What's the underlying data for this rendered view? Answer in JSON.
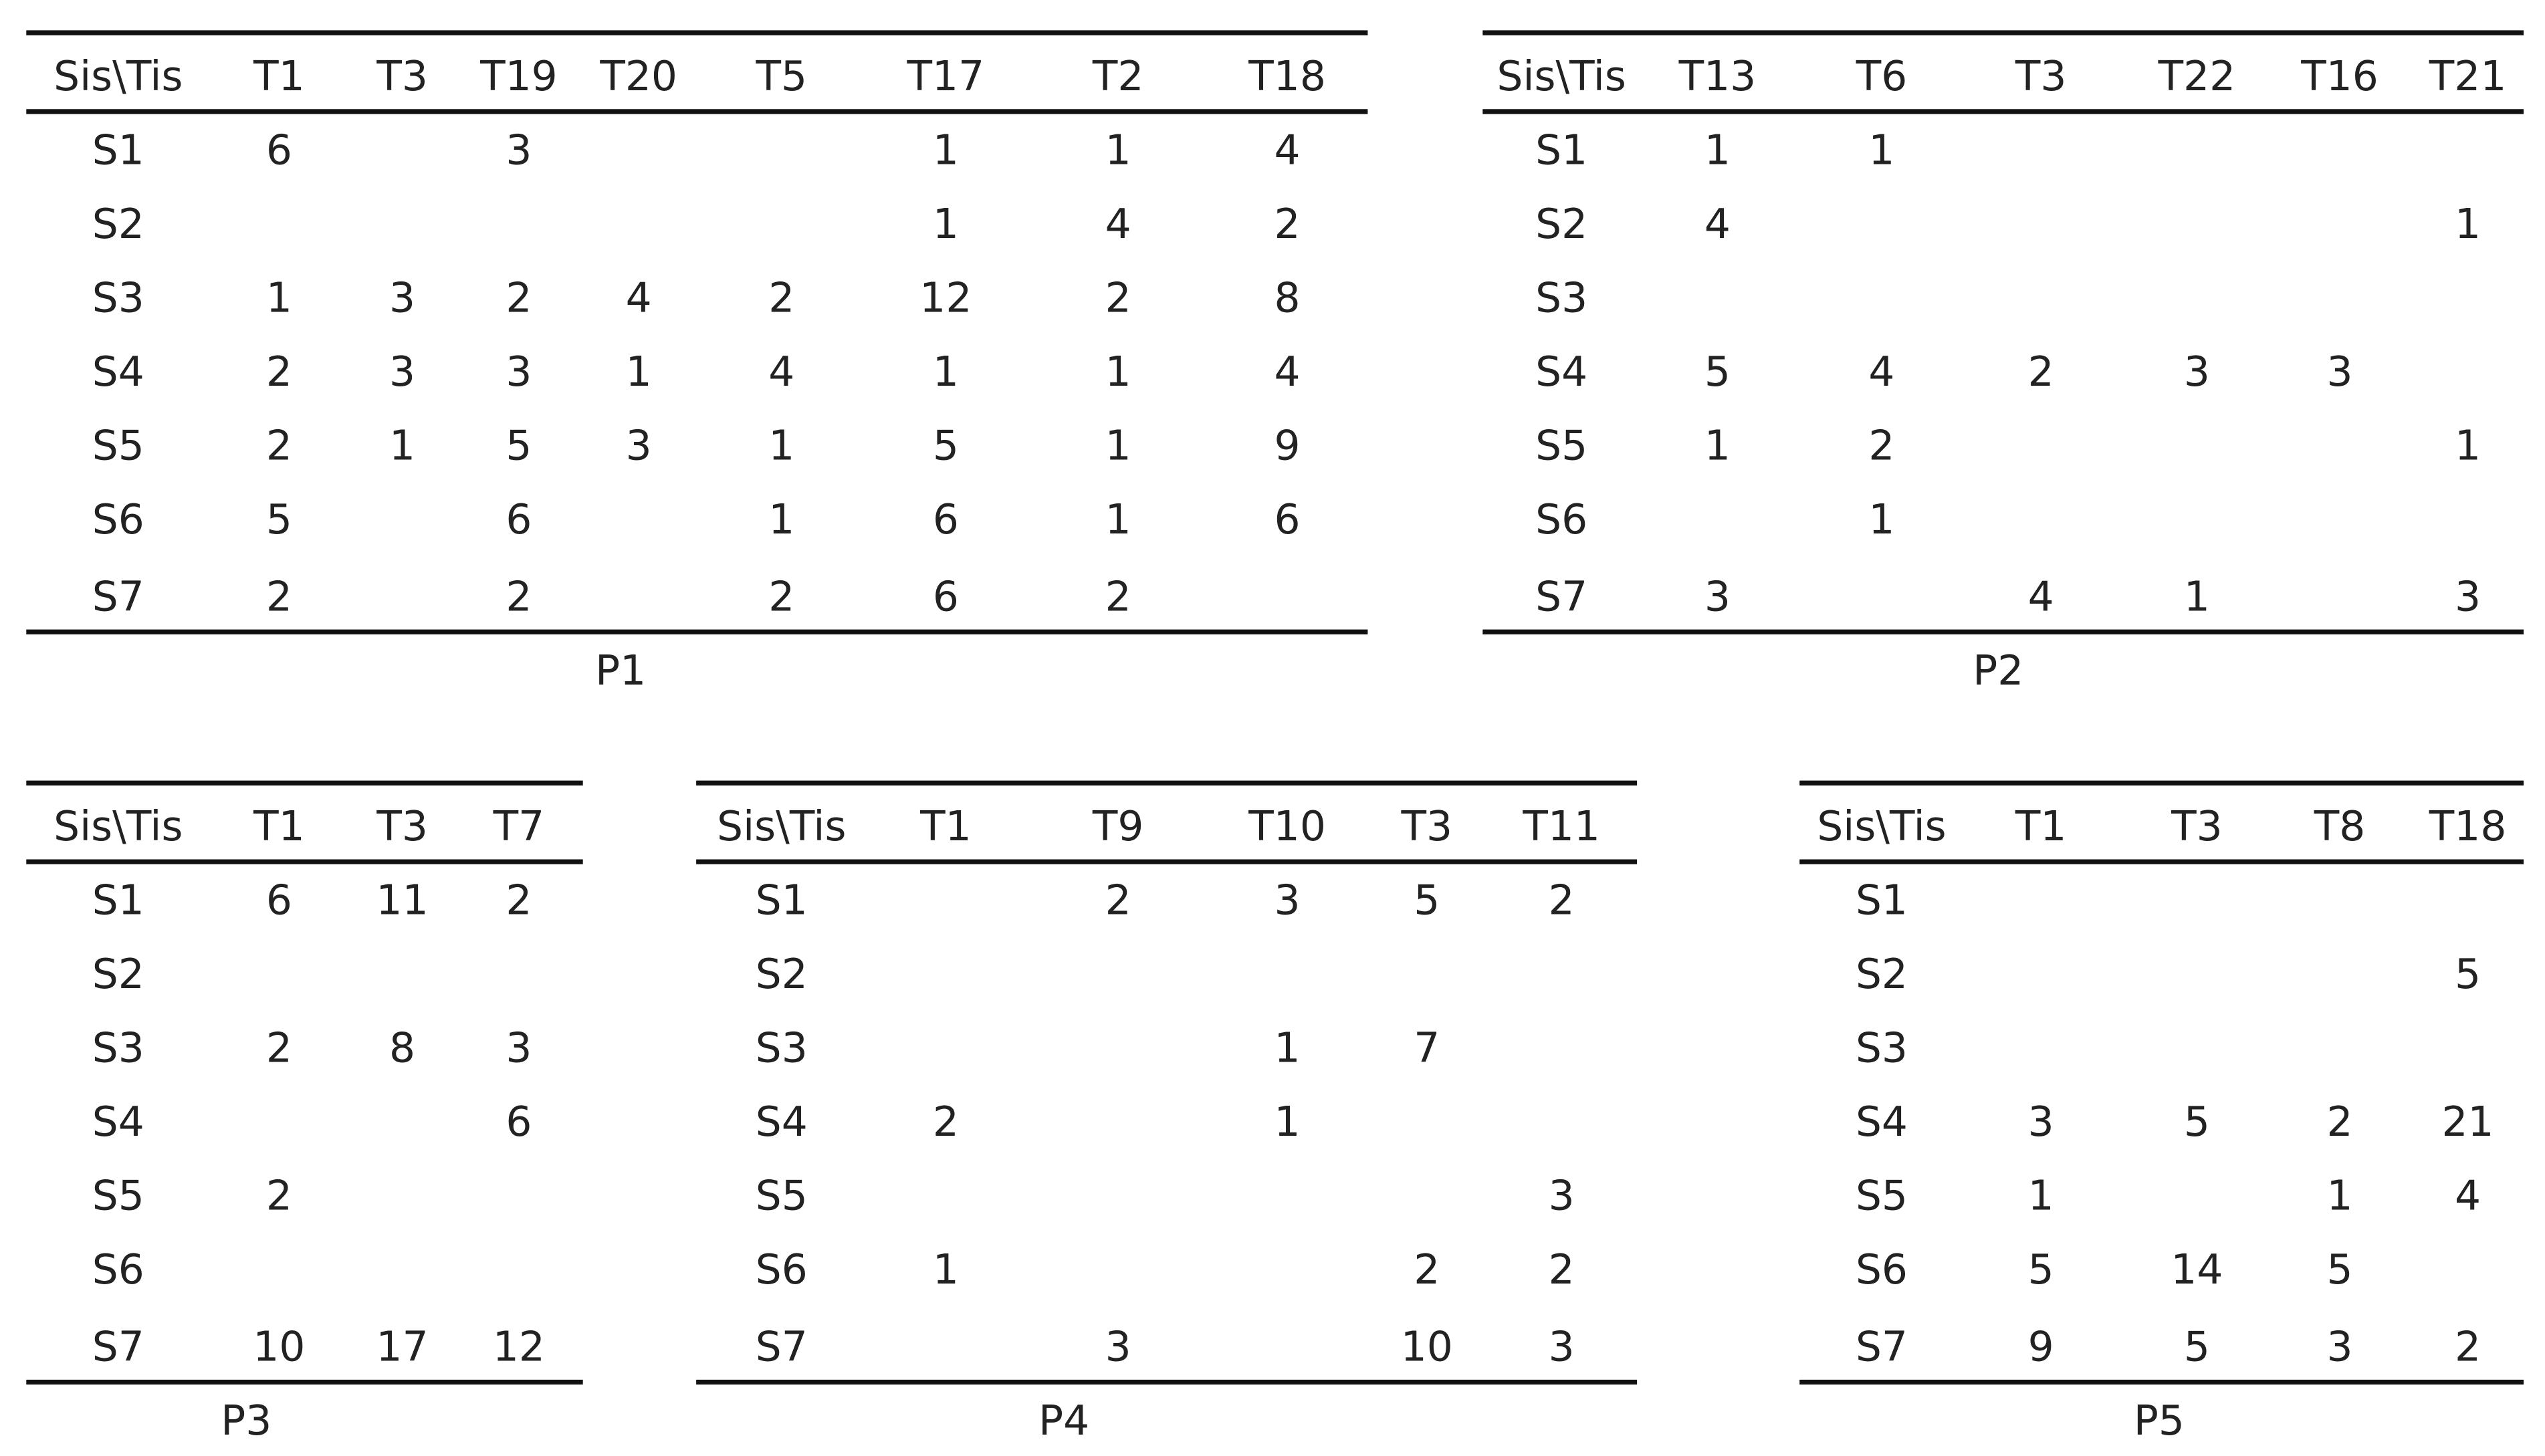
{
  "tables": [
    {
      "header": [
        "Sis\\Tis",
        "T1",
        "T3",
        "T19",
        "T20",
        "T5",
        "T17",
        "T2",
        "T18"
      ],
      "rows": [
        [
          "S1",
          6,
          null,
          3,
          null,
          null,
          1,
          1,
          4
        ],
        [
          "S2",
          null,
          null,
          null,
          null,
          null,
          1,
          4,
          2
        ],
        [
          "S3",
          1,
          3,
          2,
          4,
          2,
          12,
          2,
          8
        ],
        [
          "S4",
          2,
          3,
          3,
          1,
          4,
          1,
          1,
          4
        ],
        [
          "S5",
          2,
          1,
          5,
          3,
          1,
          5,
          1,
          9
        ],
        [
          "S6",
          5,
          null,
          6,
          null,
          1,
          6,
          1,
          6
        ],
        [
          "S7",
          2,
          null,
          2,
          null,
          2,
          6,
          2,
          null
        ]
      ],
      "caption": "P1"
    },
    {
      "header": [
        "Sis\\Tis",
        "T13",
        "T6",
        "T3",
        "T22",
        "T16",
        "T21"
      ],
      "rows": [
        [
          "S1",
          1,
          1,
          null,
          null,
          null,
          null
        ],
        [
          "S2",
          4,
          null,
          null,
          null,
          null,
          1
        ],
        [
          "S3",
          null,
          null,
          null,
          null,
          null,
          null
        ],
        [
          "S4",
          5,
          4,
          2,
          3,
          3,
          null
        ],
        [
          "S5",
          1,
          2,
          null,
          null,
          null,
          1
        ],
        [
          "S6",
          null,
          1,
          null,
          null,
          null,
          null
        ],
        [
          "S7",
          3,
          null,
          4,
          1,
          null,
          3
        ]
      ],
      "caption": "P2"
    },
    {
      "header": [
        "Sis\\Tis",
        "T1",
        "T3",
        "T7"
      ],
      "rows": [
        [
          "S1",
          6,
          11,
          2
        ],
        [
          "S2",
          null,
          null,
          null
        ],
        [
          "S3",
          2,
          8,
          3
        ],
        [
          "S4",
          null,
          null,
          6
        ],
        [
          "S5",
          2,
          null,
          null
        ],
        [
          "S6",
          null,
          null,
          null
        ],
        [
          "S7",
          10,
          17,
          12
        ]
      ],
      "caption": "P3"
    },
    {
      "header": [
        "Sis\\Tis",
        "T1",
        "T9",
        "T10",
        "T3",
        "T11"
      ],
      "rows": [
        [
          "S1",
          null,
          2,
          3,
          5,
          2
        ],
        [
          "S2",
          null,
          null,
          null,
          null,
          null
        ],
        [
          "S3",
          null,
          null,
          1,
          7,
          null
        ],
        [
          "S4",
          2,
          null,
          1,
          null,
          null
        ],
        [
          "S5",
          null,
          null,
          null,
          null,
          3
        ],
        [
          "S6",
          1,
          null,
          null,
          2,
          2
        ],
        [
          "S7",
          null,
          3,
          null,
          10,
          3
        ]
      ],
      "caption": "P4"
    },
    {
      "header": [
        "Sis\\Tis",
        "T1",
        "T3",
        "T8",
        "T18"
      ],
      "rows": [
        [
          "S1",
          null,
          null,
          null,
          null
        ],
        [
          "S2",
          null,
          null,
          null,
          5
        ],
        [
          "S3",
          null,
          null,
          null,
          null
        ],
        [
          "S4",
          3,
          5,
          2,
          21
        ],
        [
          "S5",
          1,
          null,
          1,
          4
        ],
        [
          "S6",
          5,
          14,
          5,
          null
        ],
        [
          "S7",
          9,
          5,
          3,
          2
        ]
      ],
      "caption": "P5"
    }
  ]
}
